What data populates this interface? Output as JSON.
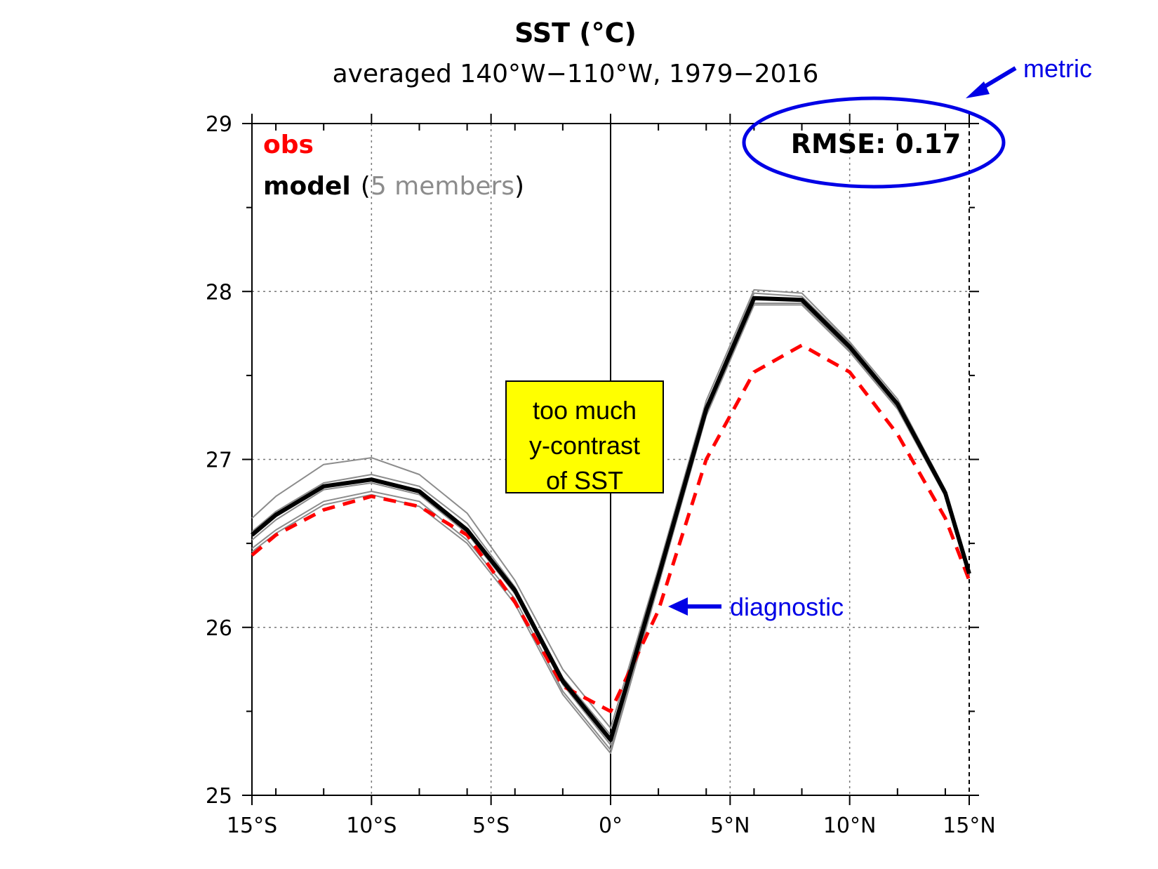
{
  "colors": {
    "obs": "#ff0000",
    "model": "#000000",
    "member": "#8c8c8c",
    "annotation": "#0000e6",
    "highlight_box": "#ffff00"
  },
  "chart_data": {
    "type": "line",
    "title": "SST (°C)",
    "subtitle": "averaged 140°W−110°W, 1979−2016",
    "x": [
      -15,
      -14,
      -12,
      -10,
      -8,
      -6,
      -4,
      -2,
      0,
      2,
      4,
      6,
      8,
      10,
      12,
      14,
      15
    ],
    "xlim": [
      -15,
      15
    ],
    "ylim": [
      25,
      29
    ],
    "x_ticks": [
      {
        "value": -15,
        "label": "15°S"
      },
      {
        "value": -10,
        "label": "10°S"
      },
      {
        "value": -5,
        "label": "5°S"
      },
      {
        "value": 0,
        "label": "0°"
      },
      {
        "value": 5,
        "label": "5°N"
      },
      {
        "value": 10,
        "label": "10°N"
      },
      {
        "value": 15,
        "label": "15°N"
      }
    ],
    "y_ticks": [
      25,
      26,
      27,
      28,
      29
    ],
    "grid": true,
    "legend": {
      "obs_label": "obs",
      "model_label": "model",
      "paren_open": "(",
      "members_label": "5 members",
      "paren_close": ")",
      "placement": "top-left"
    },
    "series": [
      {
        "name": "obs",
        "style": "dashed",
        "color": "#ff0000",
        "values": [
          26.43,
          26.55,
          26.7,
          26.78,
          26.72,
          26.55,
          26.15,
          25.65,
          25.5,
          26.1,
          27.0,
          27.52,
          27.68,
          27.52,
          27.15,
          26.65,
          26.28
        ]
      },
      {
        "name": "model",
        "style": "solid",
        "color": "#000000",
        "values": [
          26.55,
          26.67,
          26.84,
          26.88,
          26.81,
          26.58,
          26.22,
          25.68,
          25.33,
          26.3,
          27.3,
          27.96,
          27.95,
          27.67,
          27.33,
          26.8,
          26.32
        ]
      }
    ],
    "members": [
      [
        26.65,
        26.78,
        26.97,
        27.01,
        26.91,
        26.68,
        26.28,
        25.75,
        25.4,
        26.35,
        27.35,
        28.01,
        27.99,
        27.7,
        27.36,
        26.82,
        26.33
      ],
      [
        26.57,
        26.69,
        26.86,
        26.91,
        26.84,
        26.62,
        26.24,
        25.7,
        25.36,
        26.32,
        27.32,
        27.99,
        27.97,
        27.69,
        27.34,
        26.81,
        26.32
      ],
      [
        26.52,
        26.64,
        26.82,
        26.86,
        26.79,
        26.56,
        26.2,
        25.66,
        25.3,
        26.29,
        27.29,
        27.96,
        27.95,
        27.67,
        27.32,
        26.8,
        26.31
      ],
      [
        26.47,
        26.58,
        26.75,
        26.81,
        26.75,
        26.52,
        26.17,
        25.62,
        25.27,
        26.27,
        27.27,
        27.93,
        27.93,
        27.65,
        27.31,
        26.79,
        26.31
      ],
      [
        26.45,
        26.56,
        26.73,
        26.79,
        26.72,
        26.5,
        26.14,
        25.6,
        25.25,
        26.25,
        27.26,
        27.92,
        27.92,
        27.64,
        27.3,
        26.78,
        26.3
      ]
    ],
    "rmse_label": "RMSE: 0.17",
    "annotations": {
      "metric": "metric",
      "diagnostic": "diagnostic",
      "box_lines": [
        "too much",
        "y-contrast",
        "of SST"
      ]
    }
  }
}
